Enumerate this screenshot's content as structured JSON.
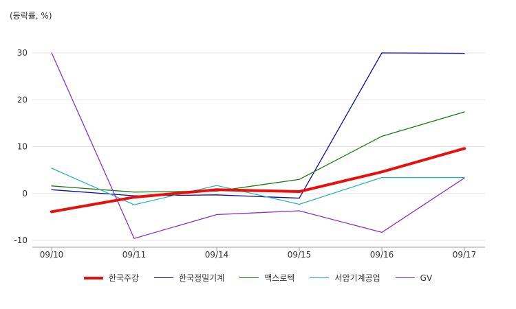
{
  "chart_data": {
    "type": "line",
    "unit_label": "(등락률, %)",
    "categories": [
      "09/10",
      "09/11",
      "09/14",
      "09/15",
      "09/16",
      "09/17"
    ],
    "ylim": [
      -10,
      30
    ],
    "yticks": [
      -10,
      0,
      10,
      20,
      30
    ],
    "grid": true,
    "legend_position": "bottom",
    "series": [
      {
        "name": "한국정밀기계",
        "color": "#0a0aa8",
        "values": [
          0.8,
          -0.5,
          -0.3,
          -1.0,
          30.0,
          29.9
        ]
      },
      {
        "name": "맥스로텍",
        "color": "#1a7a12",
        "values": [
          1.6,
          0.3,
          0.5,
          3.0,
          12.2,
          17.4
        ]
      },
      {
        "name": "서암기계공업",
        "color": "#2ab5b5",
        "values": [
          5.4,
          -2.4,
          1.7,
          -2.3,
          3.4,
          3.4
        ]
      },
      {
        "name": "GV",
        "color": "#8a2fc9",
        "values": [
          30.0,
          -9.6,
          -4.5,
          -3.7,
          -8.3,
          3.3
        ]
      },
      {
        "name": "한국주강",
        "color": "#e8100d",
        "values": [
          -3.9,
          -0.8,
          0.8,
          0.4,
          4.6,
          9.6
        ]
      }
    ],
    "legend_order": [
      "한국주강",
      "한국정밀기계",
      "맥스로텍",
      "서암기계공업",
      "GV"
    ]
  }
}
